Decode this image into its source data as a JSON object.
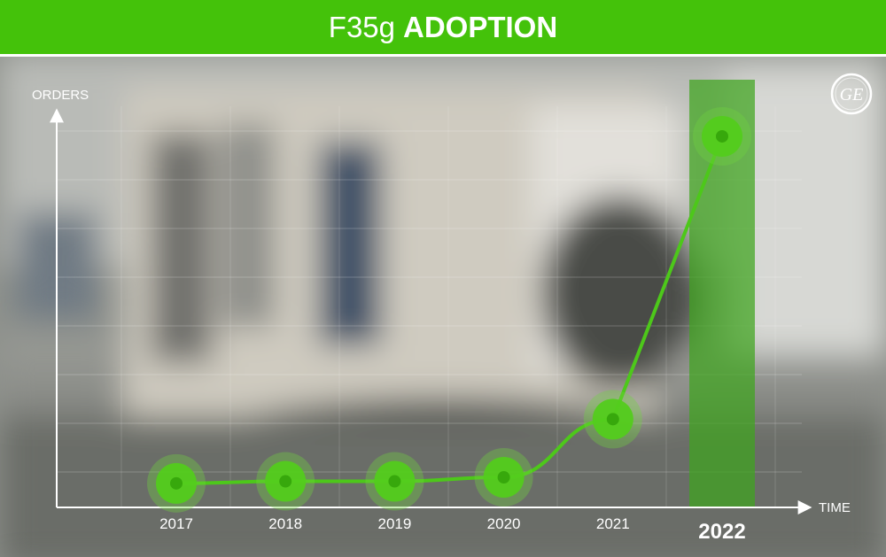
{
  "title": {
    "prefix": "F35g",
    "main": "ADOPTION"
  },
  "colors": {
    "accent": "#44c20a",
    "line": "#4dc81a",
    "highlight": "#3fa51d",
    "text": "#ffffff"
  },
  "logo": {
    "name": "ge-logo-icon",
    "text": "GE"
  },
  "chart_data": {
    "type": "line",
    "title": "F35g ADOPTION",
    "xlabel": "TIME",
    "ylabel": "ORDERS",
    "categories": [
      "2017",
      "2018",
      "2019",
      "2020",
      "2021",
      "2022"
    ],
    "values": [
      1.2,
      1.3,
      1.3,
      1.5,
      4.4,
      18.5
    ],
    "ylim": [
      0,
      20
    ],
    "highlight_category": "2022",
    "grid": true,
    "legend": "none"
  }
}
